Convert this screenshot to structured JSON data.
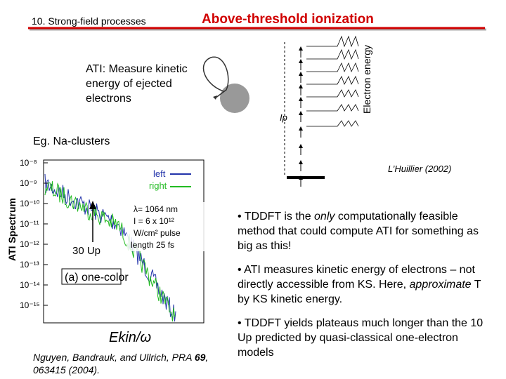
{
  "header": {
    "section": "10. Strong-field processes",
    "title": "Above-threshold ionization"
  },
  "intro": "ATI: Measure kinetic energy of ejected electrons",
  "example": "Eg. Na-clusters",
  "diagram": {
    "credit": "L’Huillier (2002)",
    "axis_label": "Electron energy",
    "ip_label": "Ip"
  },
  "figure": {
    "y_label": "ATI Spectrum",
    "yticks": [
      "10⁻⁸",
      "10⁻⁹",
      "10⁻¹⁰",
      "10⁻¹¹",
      "10⁻¹²",
      "10⁻¹³",
      "10⁻¹⁴",
      "10⁻¹⁵"
    ],
    "legend": [
      "left",
      "right"
    ],
    "marker": "30 Up",
    "panel": "(a) one-color",
    "x_label": "Ekin/ω",
    "params": [
      "λ= 1064 nm",
      "I = 6 x 10¹²",
      "W/cm² pulse",
      "length 25 fs"
    ]
  },
  "citation": {
    "authors": "Nguyen, Bandrauk, and Ullrich, PRA",
    "volume": "69",
    "rest": ", 063415 (2004)."
  },
  "bullets": [
    [
      "• TDDFT is the ",
      "only",
      " computationally feasible method that could compute ATI for something as big as this!"
    ],
    [
      "• ATI measures kinetic energy of electrons – not directly accessible from KS.  Here, ",
      "approximate",
      " T by KS kinetic energy."
    ],
    [
      "• TDDFT yields plateaus much longer than the 10 Up predicted by quasi-classical one-electron models"
    ]
  ]
}
